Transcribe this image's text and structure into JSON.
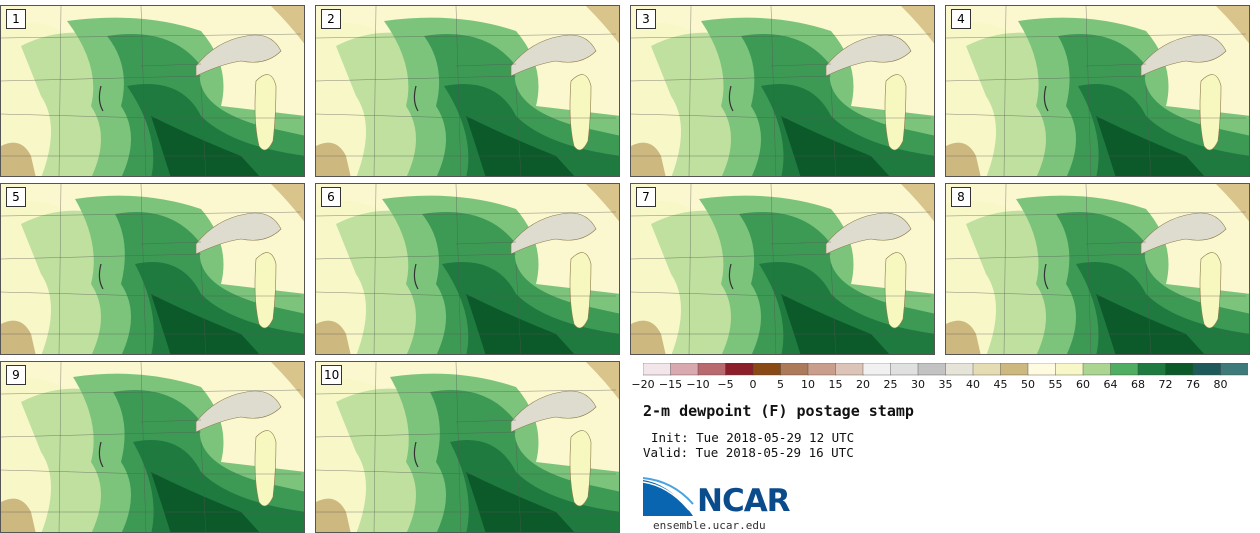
{
  "panels": [
    {
      "label": "1"
    },
    {
      "label": "2"
    },
    {
      "label": "3"
    },
    {
      "label": "4"
    },
    {
      "label": "5"
    },
    {
      "label": "6"
    },
    {
      "label": "7"
    },
    {
      "label": "8"
    },
    {
      "label": "9"
    },
    {
      "label": "10"
    }
  ],
  "colorbar": {
    "ticks": [
      "−20",
      "−15",
      "−10",
      "−5",
      "0",
      "5",
      "10",
      "15",
      "20",
      "25",
      "30",
      "35",
      "40",
      "45",
      "50",
      "55",
      "60",
      "64",
      "68",
      "72",
      "76",
      "80"
    ],
    "colors": [
      "#f3e6ea",
      "#d8a9ae",
      "#b86a6e",
      "#8c1f2a",
      "#8a4a16",
      "#ad7a5a",
      "#c99f8c",
      "#dcc5b8",
      "#f1f1f1",
      "#e0e0e0",
      "#c3c3c3",
      "#e6e4d8",
      "#e6dcb4",
      "#cdb87f",
      "#fffbe0",
      "#f7f7c8",
      "#abd691",
      "#4fae62",
      "#1f7a3f",
      "#0c5a2a",
      "#1f5a5a",
      "#3f7a7a"
    ]
  },
  "info": {
    "title": "2-m dewpoint (F) postage stamp",
    "init": "Init: Tue 2018-05-29 12 UTC",
    "valid": "Valid: Tue 2018-05-29 16 UTC"
  },
  "logo": {
    "name": "NCAR",
    "website": "ensemble.ucar.edu"
  }
}
